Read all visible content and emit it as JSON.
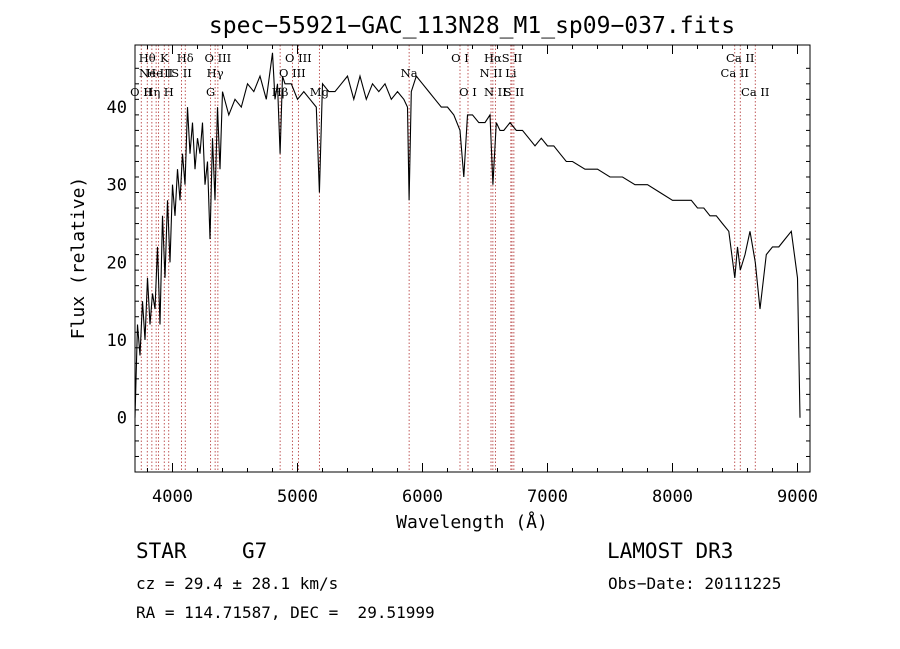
{
  "chart_data": {
    "type": "line",
    "title": "spec−55921−GAC_113N28_M1_sp09−037.fits",
    "xlabel": "Wavelength (Å)",
    "ylabel": "Flux (relative)",
    "xlim": [
      3700,
      9100
    ],
    "ylim": [
      -7,
      48
    ],
    "xticks": [
      4000,
      5000,
      6000,
      7000,
      8000,
      9000
    ],
    "yticks": [
      0,
      10,
      20,
      30,
      40
    ],
    "xtick_labels": [
      "4000",
      "5000",
      "6000",
      "7000",
      "8000",
      "9000"
    ],
    "ytick_labels": [
      "0",
      "10",
      "20",
      "30",
      "40"
    ],
    "series": [
      {
        "name": "flux",
        "x": [
          3700,
          3720,
          3740,
          3760,
          3780,
          3800,
          3820,
          3840,
          3860,
          3880,
          3900,
          3920,
          3940,
          3960,
          3980,
          4000,
          4020,
          4040,
          4060,
          4080,
          4100,
          4120,
          4140,
          4160,
          4180,
          4200,
          4220,
          4240,
          4260,
          4280,
          4300,
          4320,
          4340,
          4360,
          4380,
          4400,
          4450,
          4500,
          4550,
          4600,
          4650,
          4700,
          4750,
          4800,
          4820,
          4840,
          4861,
          4880,
          4900,
          4950,
          5000,
          5050,
          5100,
          5150,
          5175,
          5200,
          5250,
          5300,
          5350,
          5400,
          5450,
          5500,
          5550,
          5600,
          5650,
          5700,
          5750,
          5800,
          5850,
          5880,
          5893,
          5910,
          5950,
          6000,
          6050,
          6100,
          6150,
          6200,
          6250,
          6300,
          6330,
          6360,
          6400,
          6450,
          6500,
          6540,
          6563,
          6590,
          6620,
          6650,
          6700,
          6750,
          6800,
          6850,
          6900,
          6950,
          7000,
          7050,
          7100,
          7150,
          7200,
          7300,
          7400,
          7500,
          7600,
          7700,
          7800,
          7900,
          8000,
          8050,
          8100,
          8150,
          8200,
          8250,
          8300,
          8350,
          8400,
          8450,
          8498,
          8520,
          8542,
          8580,
          8620,
          8662,
          8700,
          8750,
          8800,
          8850,
          8900,
          8950,
          9000,
          9020
        ],
        "y": [
          0,
          12,
          8,
          15,
          10,
          18,
          12,
          16,
          14,
          22,
          12,
          26,
          18,
          28,
          20,
          30,
          26,
          32,
          28,
          34,
          30,
          40,
          34,
          38,
          32,
          36,
          34,
          38,
          30,
          33,
          23,
          36,
          28,
          40,
          32,
          42,
          39,
          41,
          40,
          43,
          42,
          44,
          41,
          47,
          41,
          43,
          34,
          44,
          43,
          43,
          41,
          42,
          41,
          40,
          29,
          43,
          42,
          42,
          43,
          44,
          41,
          44,
          41,
          43,
          42,
          43,
          41,
          42,
          41,
          40,
          28,
          42,
          44,
          43,
          42,
          41,
          40,
          40,
          39,
          37,
          31,
          39,
          39,
          38,
          38,
          39,
          30,
          38,
          37,
          37,
          38,
          37,
          37,
          36,
          35,
          36,
          35,
          35,
          34,
          33,
          33,
          32,
          32,
          31,
          31,
          30,
          30,
          29,
          28,
          28,
          28,
          28,
          27,
          27,
          26,
          26,
          25,
          24,
          18,
          22,
          19,
          21,
          24,
          20,
          14,
          21,
          22,
          22,
          23,
          24,
          18,
          0
        ]
      }
    ],
    "line_marks": [
      {
        "wl": 3750,
        "label": "O II",
        "row": 3
      },
      {
        "wl": 3798,
        "label": "Hθ",
        "row": 1
      },
      {
        "wl": 3835,
        "label": "Hη",
        "row": 3
      },
      {
        "wl": 3869,
        "label": "Ne III",
        "row": 2
      },
      {
        "wl": 3889,
        "label": "He I",
        "row": 2
      },
      {
        "wl": 3934,
        "label": "K",
        "row": 1
      },
      {
        "wl": 3970,
        "label": "H",
        "row": 3
      },
      {
        "wl": 4072,
        "label": "S II",
        "row": 2
      },
      {
        "wl": 4102,
        "label": "Hδ",
        "row": 1
      },
      {
        "wl": 4305,
        "label": "G",
        "row": 3
      },
      {
        "wl": 4341,
        "label": "Hγ",
        "row": 2
      },
      {
        "wl": 4363,
        "label": "O III",
        "row": 1
      },
      {
        "wl": 4861,
        "label": "Hβ",
        "row": 3
      },
      {
        "wl": 4959,
        "label": "O III",
        "row": 2
      },
      {
        "wl": 5007,
        "label": "O III",
        "row": 1
      },
      {
        "wl": 5175,
        "label": "Mg",
        "row": 3
      },
      {
        "wl": 5893,
        "label": "Na",
        "row": 2
      },
      {
        "wl": 6300,
        "label": "O I",
        "row": 1
      },
      {
        "wl": 6364,
        "label": "O I",
        "row": 3
      },
      {
        "wl": 6548,
        "label": "N II",
        "row": 2
      },
      {
        "wl": 6563,
        "label": "Hα",
        "row": 1
      },
      {
        "wl": 6583,
        "label": "N II",
        "row": 3
      },
      {
        "wl": 6707,
        "label": "Li",
        "row": 2
      },
      {
        "wl": 6716,
        "label": "S II",
        "row": 1
      },
      {
        "wl": 6731,
        "label": "S II",
        "row": 3
      },
      {
        "wl": 8498,
        "label": "Ca II",
        "row": 2
      },
      {
        "wl": 8542,
        "label": "Ca II",
        "row": 1
      },
      {
        "wl": 8662,
        "label": "Ca II",
        "row": 3
      }
    ]
  },
  "info": {
    "class_label": "STAR",
    "subclass": "G7",
    "redshift": "cz = 29.4 ± 28.1 km/s",
    "coords": "RA = 114.71587, DEC =  29.51999",
    "survey": "LAMOST DR3",
    "obs_date": "Obs−Date: 20111225"
  },
  "colors": {
    "spectrum": "#000000",
    "line_marker": "#b03030",
    "axis": "#000000"
  }
}
